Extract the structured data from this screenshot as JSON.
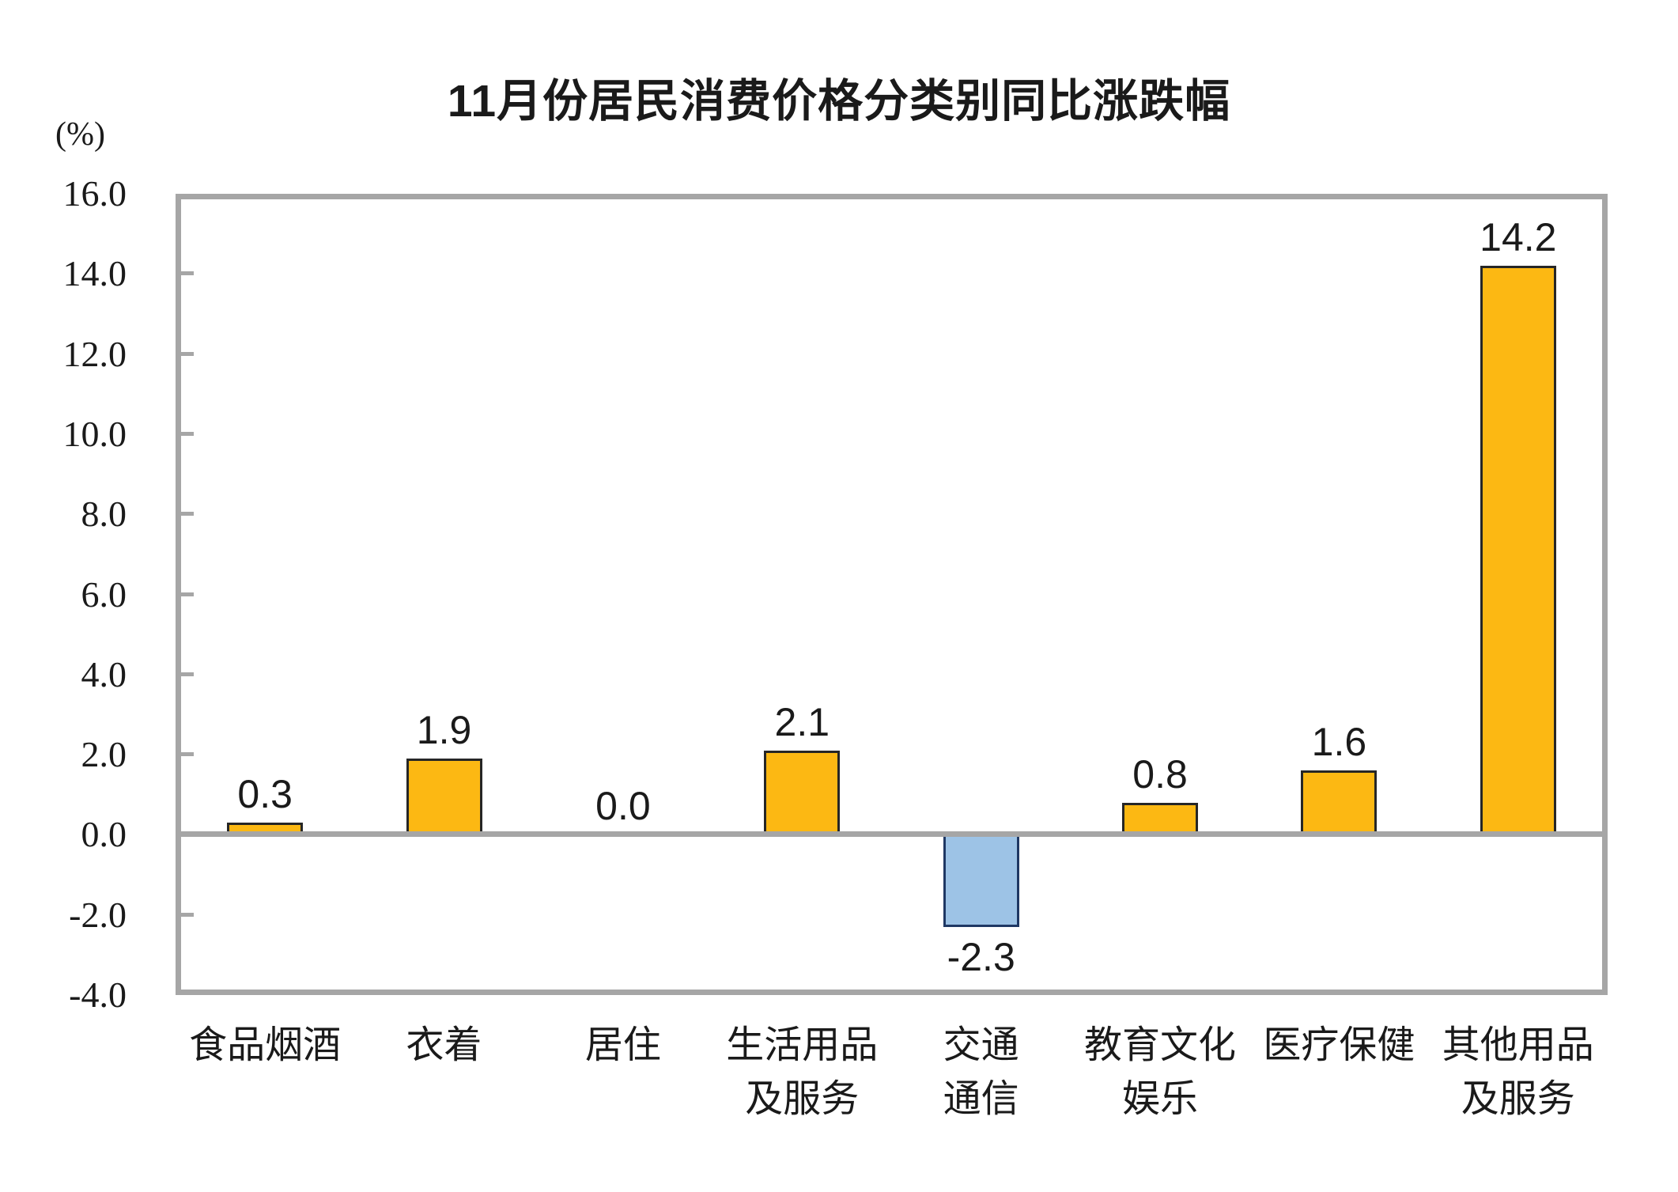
{
  "chart_data": {
    "type": "bar",
    "title": "11月份居民消费价格分类别同比涨跌幅",
    "unit_label": "(%)",
    "categories": [
      "食品烟酒",
      "衣着",
      "居住",
      "生活用品\n及服务",
      "交通\n通信",
      "教育文化\n娱乐",
      "医疗保健",
      "其他用品\n及服务"
    ],
    "values": [
      0.3,
      1.9,
      0.0,
      2.1,
      -2.3,
      0.8,
      1.6,
      14.2
    ],
    "value_labels": [
      "0.3",
      "1.9",
      "0.0",
      "2.1",
      "-2.3",
      "0.8",
      "1.6",
      "14.2"
    ],
    "xlabel": "",
    "ylabel": "(%)",
    "ylim": [
      -4.0,
      16.0
    ],
    "yticks": [
      16.0,
      14.0,
      12.0,
      10.0,
      8.0,
      6.0,
      4.0,
      2.0,
      0.0,
      -2.0,
      -4.0
    ],
    "ytick_labels": [
      "16.0",
      "14.0",
      "12.0",
      "10.0",
      "8.0",
      "6.0",
      "4.0",
      "2.0",
      "0.0",
      "-2.0",
      "-4.0"
    ],
    "grid": false,
    "legend": "none",
    "colors": {
      "positive_bar_fill": "#FCB813",
      "positive_bar_border": "#262626",
      "negative_bar_fill": "#9DC3E6",
      "negative_bar_border": "#1F3864",
      "axis_frame": "#A6A6A6",
      "zero_line": "#A6A6A6",
      "text": "#1a1a1a",
      "background": "#FFFFFF"
    }
  }
}
